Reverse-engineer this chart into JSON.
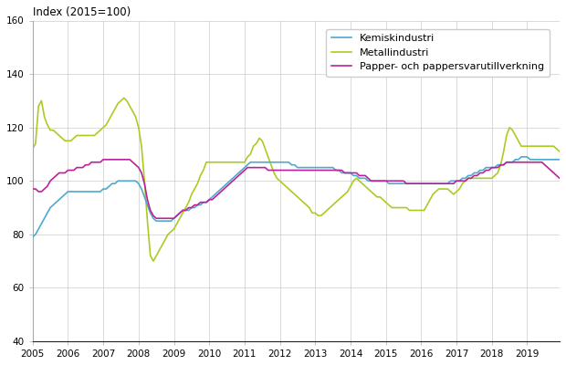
{
  "title": "Index (2015=100)",
  "xlim": [
    2005.0,
    2019.92
  ],
  "ylim": [
    40,
    160
  ],
  "yticks": [
    40,
    60,
    80,
    100,
    120,
    140,
    160
  ],
  "xticks": [
    2005,
    2006,
    2007,
    2008,
    2009,
    2010,
    2011,
    2012,
    2013,
    2014,
    2015,
    2016,
    2017,
    2018,
    2019
  ],
  "legend": [
    "Kemiskindustri",
    "Metallindustri",
    "Papper- och pappersvarutillverkning"
  ],
  "colors": {
    "kemi": "#4DAACC",
    "metall": "#AACC22",
    "papper": "#BB2299"
  },
  "linewidth": 1.2,
  "kemi": [
    79,
    80,
    82,
    84,
    86,
    88,
    90,
    91,
    92,
    93,
    94,
    95,
    96,
    96,
    96,
    96,
    96,
    96,
    96,
    96,
    96,
    96,
    96,
    96,
    97,
    97,
    98,
    99,
    99,
    100,
    100,
    100,
    100,
    100,
    100,
    100,
    99,
    97,
    94,
    91,
    88,
    86,
    85,
    85,
    85,
    85,
    85,
    85,
    86,
    87,
    88,
    89,
    89,
    89,
    90,
    90,
    91,
    91,
    92,
    92,
    93,
    94,
    95,
    96,
    97,
    98,
    99,
    100,
    101,
    102,
    103,
    104,
    105,
    106,
    107,
    107,
    107,
    107,
    107,
    107,
    107,
    107,
    107,
    107,
    107,
    107,
    107,
    107,
    106,
    106,
    105,
    105,
    105,
    105,
    105,
    105,
    105,
    105,
    105,
    105,
    105,
    105,
    105,
    104,
    104,
    103,
    103,
    103,
    103,
    102,
    102,
    101,
    101,
    101,
    100,
    100,
    100,
    100,
    100,
    100,
    100,
    99,
    99,
    99,
    99,
    99,
    99,
    99,
    99,
    99,
    99,
    99,
    99,
    99,
    99,
    99,
    99,
    99,
    99,
    99,
    99,
    99,
    100,
    100,
    100,
    100,
    101,
    101,
    102,
    102,
    103,
    103,
    104,
    104,
    105,
    105,
    105,
    105,
    106,
    106,
    106,
    107,
    107,
    107,
    108,
    108,
    109,
    109,
    109,
    108,
    108,
    108,
    108,
    108,
    108,
    108,
    108,
    108,
    108,
    108
  ],
  "metall": [
    112,
    114,
    128,
    130,
    124,
    121,
    119,
    119,
    118,
    117,
    116,
    115,
    115,
    115,
    116,
    117,
    117,
    117,
    117,
    117,
    117,
    117,
    118,
    119,
    120,
    121,
    123,
    125,
    127,
    129,
    130,
    131,
    130,
    128,
    126,
    124,
    120,
    113,
    100,
    85,
    72,
    70,
    72,
    74,
    76,
    78,
    80,
    81,
    82,
    84,
    86,
    88,
    90,
    92,
    95,
    97,
    99,
    102,
    104,
    107,
    107,
    107,
    107,
    107,
    107,
    107,
    107,
    107,
    107,
    107,
    107,
    107,
    107,
    109,
    110,
    113,
    114,
    116,
    115,
    112,
    109,
    106,
    103,
    101,
    100,
    99,
    98,
    97,
    96,
    95,
    94,
    93,
    92,
    91,
    90,
    88,
    88,
    87,
    87,
    88,
    89,
    90,
    91,
    92,
    93,
    94,
    95,
    96,
    98,
    100,
    101,
    100,
    99,
    98,
    97,
    96,
    95,
    94,
    94,
    93,
    92,
    91,
    90,
    90,
    90,
    90,
    90,
    90,
    89,
    89,
    89,
    89,
    89,
    89,
    91,
    93,
    95,
    96,
    97,
    97,
    97,
    97,
    96,
    95,
    96,
    97,
    99,
    100,
    101,
    101,
    101,
    101,
    101,
    101,
    101,
    101,
    101,
    102,
    103,
    106,
    111,
    117,
    120,
    119,
    117,
    115,
    113,
    113,
    113,
    113,
    113,
    113,
    113,
    113,
    113,
    113,
    113,
    113,
    112,
    111
  ],
  "papper": [
    97,
    97,
    96,
    96,
    97,
    98,
    100,
    101,
    102,
    103,
    103,
    103,
    104,
    104,
    104,
    105,
    105,
    105,
    106,
    106,
    107,
    107,
    107,
    107,
    108,
    108,
    108,
    108,
    108,
    108,
    108,
    108,
    108,
    108,
    107,
    106,
    105,
    103,
    99,
    93,
    89,
    87,
    86,
    86,
    86,
    86,
    86,
    86,
    86,
    87,
    88,
    89,
    89,
    90,
    90,
    91,
    91,
    92,
    92,
    92,
    93,
    93,
    94,
    95,
    96,
    97,
    98,
    99,
    100,
    101,
    102,
    103,
    104,
    105,
    105,
    105,
    105,
    105,
    105,
    105,
    104,
    104,
    104,
    104,
    104,
    104,
    104,
    104,
    104,
    104,
    104,
    104,
    104,
    104,
    104,
    104,
    104,
    104,
    104,
    104,
    104,
    104,
    104,
    104,
    104,
    104,
    103,
    103,
    103,
    103,
    103,
    102,
    102,
    102,
    101,
    100,
    100,
    100,
    100,
    100,
    100,
    100,
    100,
    100,
    100,
    100,
    100,
    99,
    99,
    99,
    99,
    99,
    99,
    99,
    99,
    99,
    99,
    99,
    99,
    99,
    99,
    99,
    99,
    99,
    100,
    100,
    100,
    100,
    101,
    101,
    102,
    102,
    103,
    103,
    104,
    104,
    105,
    105,
    105,
    106,
    106,
    107,
    107,
    107,
    107,
    107,
    107,
    107,
    107,
    107,
    107,
    107,
    107,
    107,
    106,
    105,
    104,
    103,
    102,
    101
  ]
}
